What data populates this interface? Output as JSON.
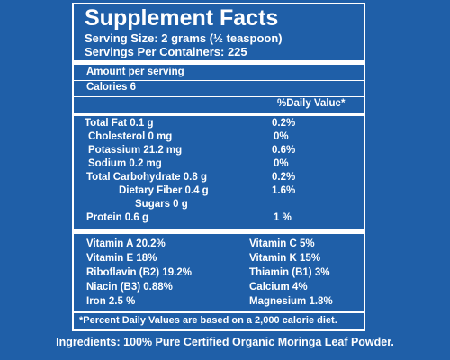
{
  "title": "Supplement Facts",
  "serving_size": "Serving Size: 2 grams (½ teaspoon)",
  "servings_per": "Servings Per Containers: 225",
  "amount_per_serving": "Amount per serving",
  "calories": "Calories 6",
  "dv_header": "%Daily Value*",
  "nutrients": [
    {
      "label": "Total Fat 0.1 g",
      "dv": "0.2%"
    },
    {
      "label": "Cholesterol 0 mg",
      "dv": "0%"
    },
    {
      "label": "Potassium 21.2 mg",
      "dv": "0.6%"
    },
    {
      "label": "Sodium 0.2 mg",
      "dv": "0%"
    },
    {
      "label": "Total Carbohydrate 0.8 g",
      "dv": "0.2%"
    },
    {
      "label": "Dietary Fiber 0.4 g",
      "dv": "1.6%"
    },
    {
      "label": "Sugars 0 g",
      "dv": ""
    },
    {
      "label": "Protein 0.6 g",
      "dv": "1 %"
    }
  ],
  "vitamins_left": [
    "Vitamin A 20.2%",
    "Vitamin E 18%",
    "Riboflavin (B2) 19.2%",
    "Niacin (B3) 0.88%",
    "Iron 2.5 %"
  ],
  "vitamins_right": [
    "Vitamin C  5%",
    "Vitamin K 15%",
    "Thiamin (B1) 3%",
    "Calcium 4%",
    "Magnesium 1.8%"
  ],
  "footnote": "*Percent Daily Values are based on a 2,000 calorie diet.",
  "ingredients": "Ingredients: 100% Pure Certified Organic Moringa Leaf Powder."
}
